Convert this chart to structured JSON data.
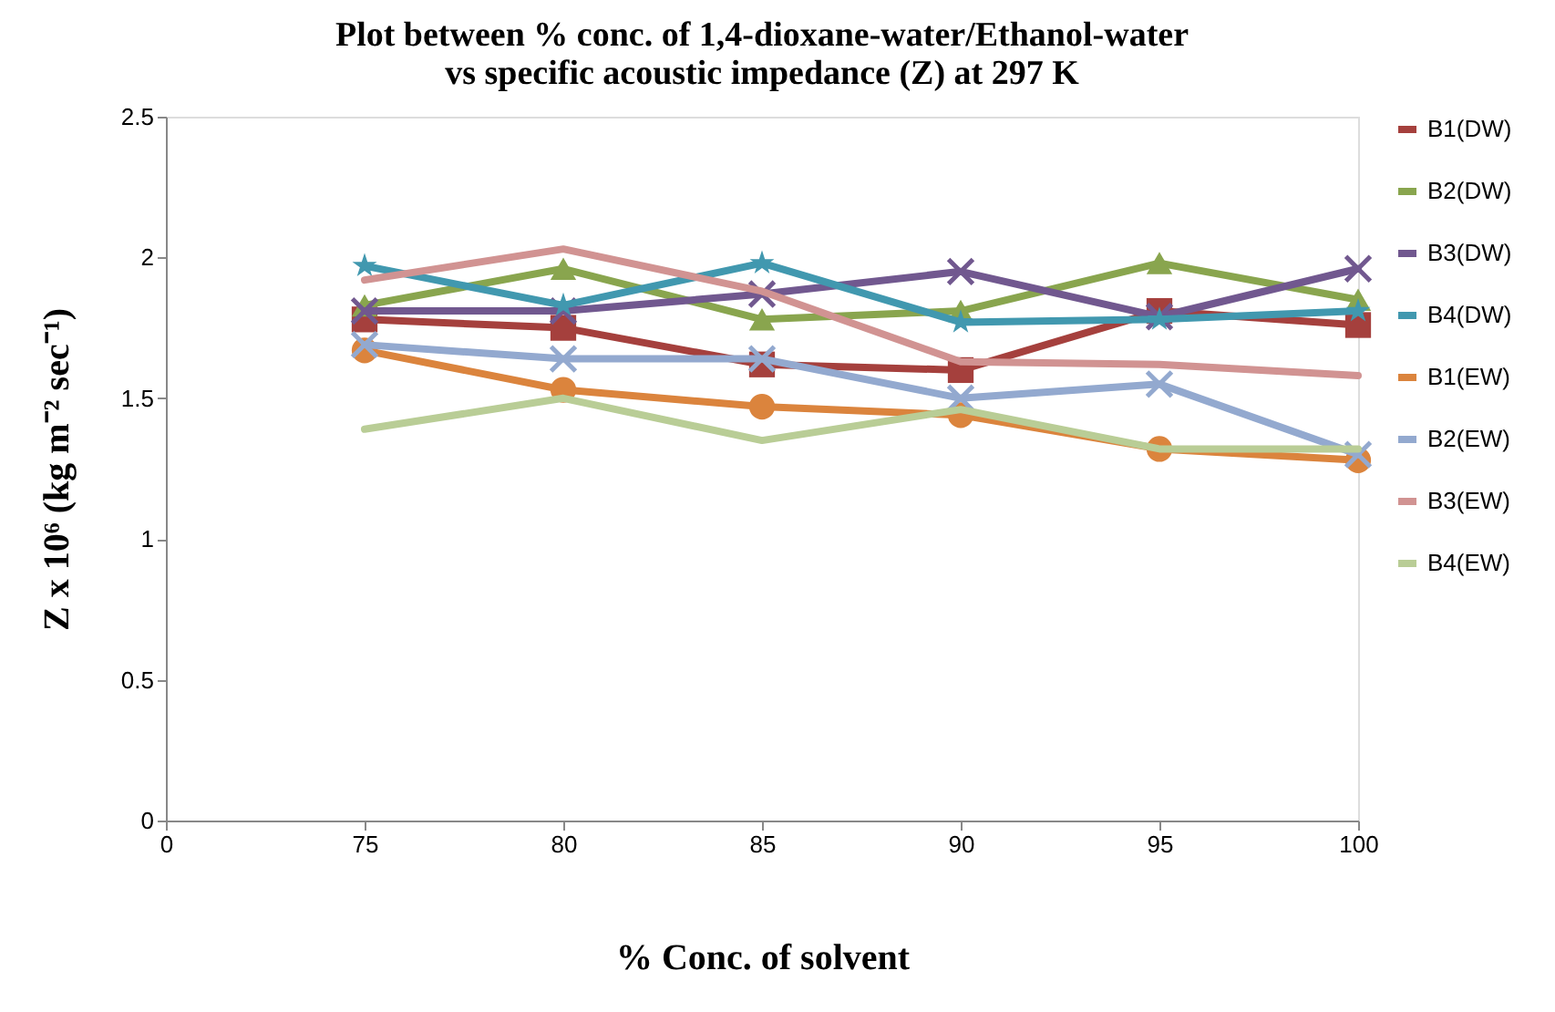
{
  "chart_data": {
    "type": "line",
    "title": "Plot between % conc. of 1,4-dioxane-water/Ethanol-water\nvs specific acoustic impedance (Z) at 297 K",
    "xlabel": "%  Conc. of solvent",
    "ylabel": "Z x 10⁶ (kg m⁻² sec⁻¹)",
    "categories": [
      "0",
      "75",
      "80",
      "85",
      "90",
      "95",
      "100"
    ],
    "ylim": [
      0,
      2.5
    ],
    "yticks": [
      0,
      0.5,
      1,
      1.5,
      2,
      2.5
    ],
    "grid": false,
    "legend": "right",
    "series": [
      {
        "name": "B1(DW)",
        "color": "#a5403d",
        "marker": "square",
        "values": [
          null,
          1.78,
          1.75,
          1.62,
          1.6,
          1.81,
          1.76
        ]
      },
      {
        "name": "B2(DW)",
        "color": "#89a54e",
        "marker": "triangle",
        "values": [
          null,
          1.83,
          1.96,
          1.78,
          1.81,
          1.98,
          1.85
        ]
      },
      {
        "name": "B3(DW)",
        "color": "#71588f",
        "marker": "cross",
        "values": [
          null,
          1.81,
          1.81,
          1.87,
          1.95,
          1.79,
          1.96
        ]
      },
      {
        "name": "B4(DW)",
        "color": "#4198af",
        "marker": "star",
        "values": [
          null,
          1.97,
          1.83,
          1.98,
          1.77,
          1.78,
          1.81
        ]
      },
      {
        "name": "B1(EW)",
        "color": "#db843d",
        "marker": "circle",
        "values": [
          null,
          1.67,
          1.53,
          1.47,
          1.44,
          1.32,
          1.28
        ]
      },
      {
        "name": "B2(EW)",
        "color": "#93a9cf",
        "marker": "cross",
        "values": [
          null,
          1.69,
          1.64,
          1.64,
          1.5,
          1.55,
          1.3
        ]
      },
      {
        "name": "B3(EW)",
        "color": "#d19392",
        "marker": "none",
        "values": [
          null,
          1.92,
          2.03,
          1.88,
          1.63,
          1.62,
          1.58
        ]
      },
      {
        "name": "B4(EW)",
        "color": "#b9cd96",
        "marker": "none",
        "values": [
          null,
          1.39,
          1.5,
          1.35,
          1.46,
          1.32,
          1.32
        ]
      }
    ]
  }
}
